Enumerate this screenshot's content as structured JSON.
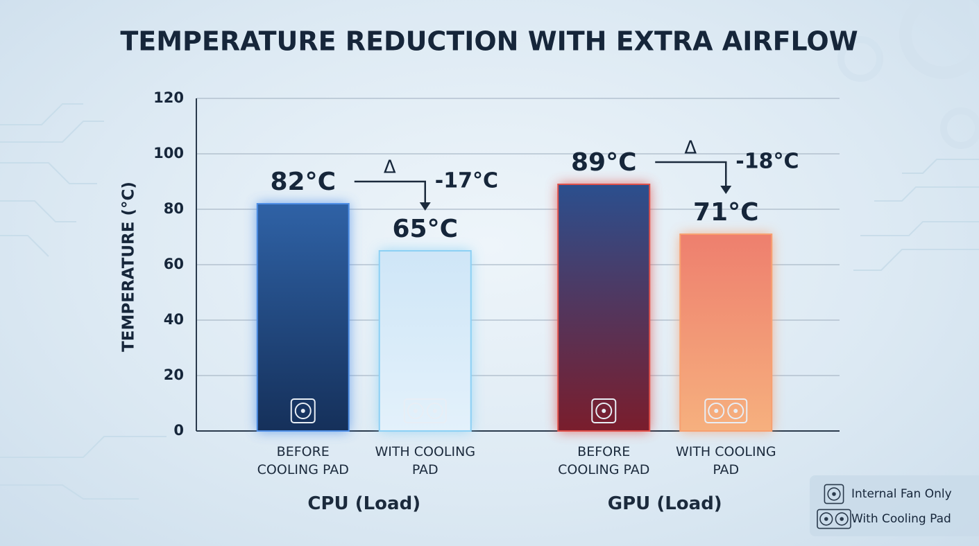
{
  "chart_data": {
    "type": "bar",
    "title": "TEMPERATURE REDUCTION WITH EXTRA AIRFLOW",
    "y_label": "TEMPERATURE (°C)",
    "ylim": [
      0,
      120
    ],
    "yticks": [
      0,
      20,
      40,
      60,
      80,
      100,
      120
    ],
    "grid": true,
    "categories": [
      "CPU (Load)",
      "GPU (Load)"
    ],
    "series": [
      {
        "name": "Internal Fan Only",
        "icon": "single",
        "bar_labels": [
          "BEFORE COOLING PAD",
          "BEFORE COOLING PAD"
        ],
        "values": [
          82,
          89
        ],
        "value_labels": [
          "82°C",
          "89°C"
        ],
        "colors": [
          [
            "#2f62a6",
            "#15305a"
          ],
          [
            "#2b4f8e",
            "#7a1d2c"
          ]
        ],
        "glows": [
          "#4f8fe6",
          "#e0504a"
        ]
      },
      {
        "name": "With Cooling Pad",
        "icon": "double",
        "bar_labels": [
          "WITH COOLING PAD",
          "WITH COOLING PAD"
        ],
        "values": [
          65,
          71
        ],
        "value_labels": [
          "65°C",
          "71°C"
        ],
        "colors": [
          [
            "#cfe6f7",
            "#e3f1fb"
          ],
          [
            "#ee7f6e",
            "#f6b07e"
          ]
        ],
        "glows": [
          "#8cd0f4",
          "#f7a070"
        ]
      }
    ],
    "delta_symbol": "Δ",
    "deltas": [
      {
        "value": -17,
        "label": "-17°C"
      },
      {
        "value": -18,
        "label": "-18°C"
      }
    ],
    "legend": "bottom-right"
  }
}
